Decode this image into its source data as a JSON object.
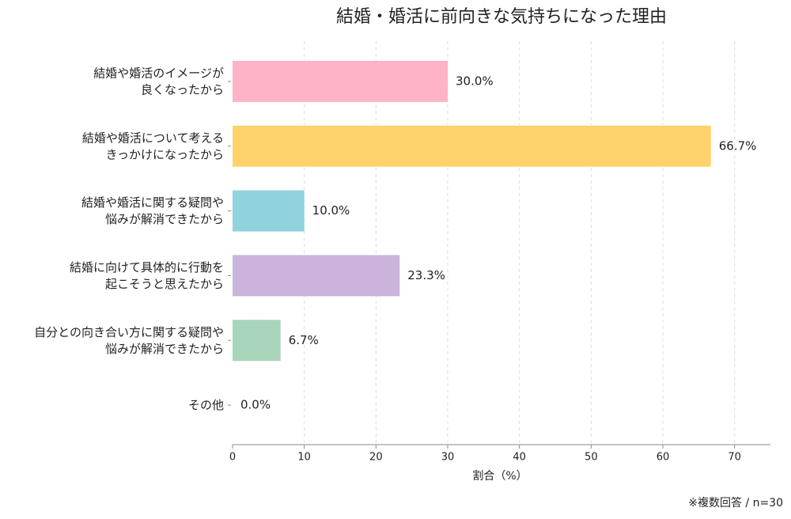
{
  "chart_data": {
    "type": "barh",
    "title": "結婚・婚活に前向きな気持ちになった理由",
    "categories": [
      [
        "結婚や婚活のイメージが",
        "良くなったから"
      ],
      [
        "結婚や婚活について考える",
        "きっかけになったから"
      ],
      [
        "結婚や婚活に関する疑問や",
        "悩みが解消できたから"
      ],
      [
        "結婚に向けて具体的に行動を",
        "起こそうと思えたから"
      ],
      [
        "自分との向き合い方に関する疑問や",
        "悩みが解消できたから"
      ],
      [
        "その他"
      ]
    ],
    "values": [
      30.0,
      66.7,
      10.0,
      23.3,
      6.7,
      0.0
    ],
    "value_labels": [
      "30.0%",
      "66.7%",
      "10.0%",
      "23.3%",
      "6.7%",
      "0.0%"
    ],
    "colors": [
      "#ffb3c7",
      "#ffd36b",
      "#90d3dc",
      "#cbb3db",
      "#a8d5bb"
    ],
    "xlim": [
      0,
      75
    ],
    "xticks": [
      0,
      10,
      20,
      30,
      40,
      50,
      60,
      70
    ],
    "xlabel": "割合（%）",
    "grid": true,
    "note": "※複数回答 / n=30"
  }
}
